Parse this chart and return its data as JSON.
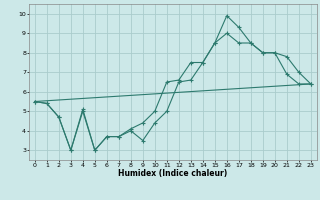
{
  "xlabel": "Humidex (Indice chaleur)",
  "background_color": "#cce8e8",
  "grid_color": "#aacccc",
  "line_color": "#2d7a6e",
  "xlim": [
    -0.5,
    23.5
  ],
  "ylim": [
    2.5,
    10.5
  ],
  "xticks": [
    0,
    1,
    2,
    3,
    4,
    5,
    6,
    7,
    8,
    9,
    10,
    11,
    12,
    13,
    14,
    15,
    16,
    17,
    18,
    19,
    20,
    21,
    22,
    23
  ],
  "yticks": [
    3,
    4,
    5,
    6,
    7,
    8,
    9,
    10
  ],
  "series1_x": [
    0,
    1,
    2,
    3,
    4,
    5,
    6,
    7,
    8,
    9,
    10,
    11,
    12,
    13,
    14,
    15,
    16,
    17,
    18,
    19,
    20,
    21,
    22,
    23
  ],
  "series1_y": [
    5.5,
    5.4,
    4.7,
    3.0,
    5.1,
    3.0,
    3.7,
    3.7,
    4.0,
    3.5,
    4.4,
    5.0,
    6.5,
    6.6,
    7.5,
    8.5,
    9.9,
    9.3,
    8.5,
    8.0,
    8.0,
    7.8,
    7.0,
    6.4
  ],
  "series2_x": [
    0,
    1,
    2,
    3,
    4,
    5,
    6,
    7,
    8,
    9,
    10,
    11,
    12,
    13,
    14,
    15,
    16,
    17,
    18,
    19,
    20,
    21,
    22,
    23
  ],
  "series2_y": [
    5.5,
    5.4,
    4.7,
    3.0,
    5.0,
    3.0,
    3.7,
    3.7,
    4.1,
    4.4,
    5.0,
    6.5,
    6.6,
    7.5,
    7.5,
    8.5,
    9.0,
    8.5,
    8.5,
    8.0,
    8.0,
    6.9,
    6.4,
    6.4
  ],
  "series3_x": [
    0,
    23
  ],
  "series3_y": [
    5.5,
    6.4
  ]
}
